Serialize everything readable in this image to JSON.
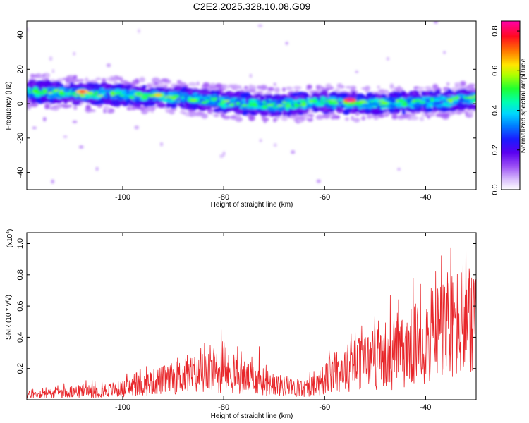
{
  "title": "C2E2.2025.328.10.08.G09",
  "chart_data": [
    {
      "type": "heatmap",
      "xlabel": "Height of straight line (km)",
      "ylabel": "Frequency (Hz)",
      "xlim": [
        -119,
        -30
      ],
      "ylim": [
        -50,
        48
      ],
      "xticks": [
        -100,
        -80,
        -60,
        -40
      ],
      "yticks": [
        -40,
        -20,
        0,
        20,
        40
      ],
      "colorbar": {
        "label": "Normalized spectral amplitude",
        "range": [
          0,
          0.85
        ],
        "ticks": [
          "0.0",
          "0.2",
          "0.4",
          "0.6",
          "0.8"
        ]
      },
      "ridge": [
        {
          "x": -118,
          "y": 7
        },
        {
          "x": -110,
          "y": 6
        },
        {
          "x": -100,
          "y": 5
        },
        {
          "x": -90,
          "y": 4
        },
        {
          "x": -80,
          "y": 1
        },
        {
          "x": -70,
          "y": -1
        },
        {
          "x": -60,
          "y": 1
        },
        {
          "x": -50,
          "y": 0
        },
        {
          "x": -40,
          "y": 1
        },
        {
          "x": -30,
          "y": 3
        }
      ],
      "peaks": [
        {
          "x": -108,
          "y": 7,
          "amplitude": 0.75
        },
        {
          "x": -93,
          "y": 5,
          "amplitude": 0.65
        },
        {
          "x": -55,
          "y": 2,
          "amplitude": 0.85
        },
        {
          "x": -86,
          "y": 2,
          "amplitude": 0.55
        }
      ]
    },
    {
      "type": "line",
      "xlabel": "Height of straight line (km)",
      "ylabel": "SNR (10 * v/v)",
      "yscale_label": "(x10",
      "yscale_exp": "4",
      "xlim": [
        -119,
        -30
      ],
      "ylim": [
        0,
        1.07
      ],
      "xticks": [
        -100,
        -80,
        -60,
        -40
      ],
      "yticks": [
        "0.2",
        "0.4",
        "0.6",
        "0.8",
        "1.0"
      ],
      "series_color": "#e8262a",
      "envelope": [
        {
          "x": -119,
          "y": 0.05
        },
        {
          "x": -110,
          "y": 0.08
        },
        {
          "x": -100,
          "y": 0.11
        },
        {
          "x": -92,
          "y": 0.2
        },
        {
          "x": -86,
          "y": 0.26
        },
        {
          "x": -80,
          "y": 0.28
        },
        {
          "x": -75,
          "y": 0.22
        },
        {
          "x": -70,
          "y": 0.16
        },
        {
          "x": -65,
          "y": 0.1
        },
        {
          "x": -62,
          "y": 0.15
        },
        {
          "x": -57,
          "y": 0.3
        },
        {
          "x": -52,
          "y": 0.4
        },
        {
          "x": -48,
          "y": 0.38
        },
        {
          "x": -44,
          "y": 0.5
        },
        {
          "x": -40,
          "y": 0.62
        },
        {
          "x": -37,
          "y": 0.7
        },
        {
          "x": -33,
          "y": 0.78
        },
        {
          "x": -30,
          "y": 0.7
        }
      ],
      "peaks": [
        {
          "x": -80.5,
          "y": 0.45
        },
        {
          "x": -73,
          "y": 0.34
        },
        {
          "x": -53,
          "y": 0.53
        },
        {
          "x": -47,
          "y": 0.67
        },
        {
          "x": -42.5,
          "y": 0.78
        },
        {
          "x": -41,
          "y": 0.74
        },
        {
          "x": -38,
          "y": 0.82
        },
        {
          "x": -35,
          "y": 0.97
        },
        {
          "x": -32,
          "y": 1.06
        }
      ]
    }
  ]
}
